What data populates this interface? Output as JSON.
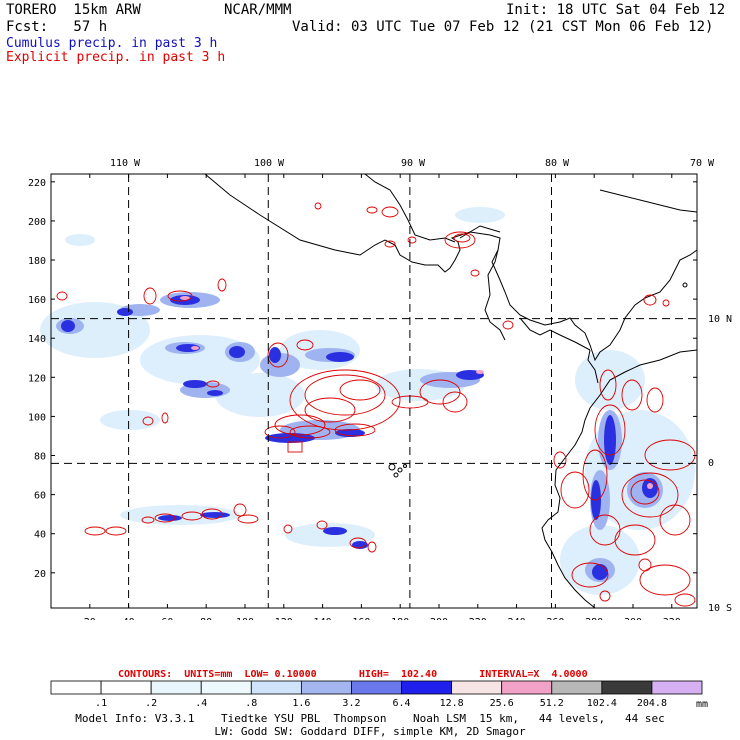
{
  "header": {
    "model": "TORERO  15km ARW",
    "org": "NCAR/MMM",
    "init": "Init: 18 UTC Sat 04 Feb 12",
    "fcst": "Fcst:   57 h",
    "valid": "Valid: 03 UTC Tue 07 Feb 12 (21 CST Mon 06 Feb 12)",
    "cumulus_label": "Cumulus precip. in past 3 h",
    "explicit_label": "Explicit precip. in past 3 h",
    "cumulus_color": "#1010c0",
    "explicit_color": "#e00000"
  },
  "map": {
    "top_lon_labels": [
      "110 W",
      "100 W",
      "90 W",
      "80 W",
      "70 W"
    ],
    "right_lat_labels": [
      "10 N",
      "0",
      "10 S"
    ],
    "x_ticks": [
      "20",
      "40",
      "60",
      "80",
      "100",
      "120",
      "140",
      "160",
      "180",
      "200",
      "220",
      "240",
      "260",
      "280",
      "300",
      "320"
    ],
    "y_ticks": [
      "20",
      "40",
      "60",
      "80",
      "100",
      "120",
      "140",
      "160",
      "180",
      "200",
      "220"
    ],
    "grid_lons": [
      40,
      112,
      185,
      258
    ],
    "grid_lats": [
      76,
      150
    ],
    "x_range": [
      0,
      333
    ],
    "y_range": [
      2,
      224
    ],
    "land_color": "#000000",
    "contour_color": "#dd0000"
  },
  "legend": {
    "contours_text": "CONTOURS:  UNITS=mm  LOW= 0.10000       HIGH=  102.40       INTERVAL=X  4.0000",
    "unit": "mm",
    "labels": [
      ".1",
      ".2",
      ".4",
      ".8",
      "1.6",
      "3.2",
      "6.4",
      "12.8",
      "25.6",
      "51.2",
      "102.4",
      "204.8"
    ],
    "colors": [
      "#ffffff",
      "#ffffff",
      "#e9f6fb",
      "#eef9fe",
      "#cfe3fa",
      "#a4b6f0",
      "#6a78ec",
      "#2020ee",
      "#f7e4e4",
      "#f2a2c6",
      "#b8b8b8",
      "#3a3a3a",
      "#d6b0f2"
    ]
  },
  "footer": {
    "line1": "Model Info: V3.3.1    Tiedtke YSU PBL  Thompson    Noah LSM  15 km,   44 levels,   44 sec",
    "line2": "LW: Godd SW: Goddard DIFF, simple KM, 2D Smagor"
  }
}
